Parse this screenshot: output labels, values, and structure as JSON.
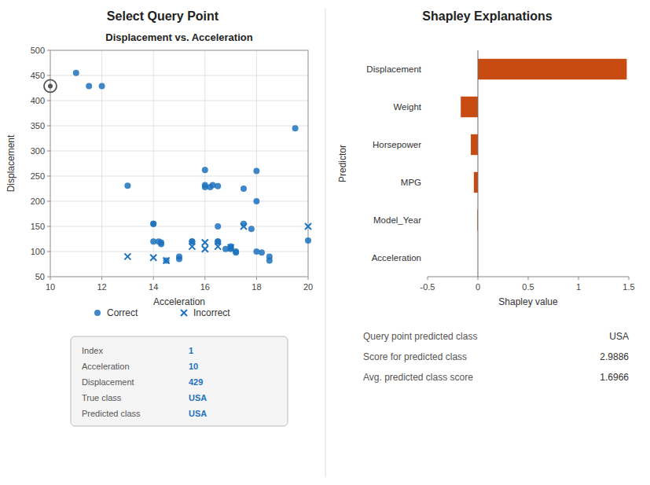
{
  "chart_data": [
    {
      "type": "scatter",
      "subtitle": "Select Query Point",
      "title": "Displacement vs. Acceleration",
      "x_label": "Acceleration",
      "y_label": "Displacement",
      "xlim": [
        10,
        20
      ],
      "xticks": [
        10,
        12,
        14,
        16,
        18,
        20
      ],
      "ylim": [
        50,
        500
      ],
      "yticks": [
        50,
        100,
        150,
        200,
        250,
        300,
        350,
        400,
        450,
        500
      ],
      "grid": true,
      "legend": "bottom",
      "series": [
        {
          "name": "Correct",
          "color": "#1e72be",
          "marker": "circle",
          "x": [
            11.0,
            11.5,
            12.0,
            13.0,
            14.0,
            14.0,
            14.0,
            14.2,
            14.3,
            14.3,
            14.5,
            15.0,
            15.0,
            15.5,
            15.5,
            16.0,
            16.0,
            16.2,
            16.3,
            16.5,
            16.0,
            16.5,
            16.5,
            16.5,
            16.8,
            17.0,
            17.0,
            17.0,
            17.2,
            17.2,
            17.5,
            17.5,
            17.8,
            18.0,
            18.0,
            18.0,
            18.2,
            18.5,
            18.5,
            19.5,
            20.0
          ],
          "values": [
            455,
            429,
            429,
            231,
            155,
            155,
            120,
            120,
            115,
            118,
            82,
            90,
            85,
            120,
            120,
            228,
            232,
            228,
            232,
            230,
            262,
            120,
            120,
            150,
            105,
            110,
            105,
            108,
            100,
            98,
            225,
            155,
            145,
            260,
            200,
            100,
            98,
            90,
            82,
            345,
            122
          ]
        },
        {
          "name": "Incorrect",
          "color": "#1e72be",
          "marker": "x",
          "x": [
            13.0,
            14.0,
            14.5,
            15.5,
            16.0,
            16.0,
            16.5,
            17.0,
            17.5,
            20.0
          ],
          "values": [
            90,
            88,
            82,
            110,
            118,
            105,
            110,
            108,
            150,
            150
          ]
        }
      ],
      "query_point": {
        "x": 10.0,
        "y": 429,
        "tooltip": [
          {
            "label": "Index",
            "value": "1"
          },
          {
            "label": "Acceleration",
            "value": "10"
          },
          {
            "label": "Displacement",
            "value": "429"
          },
          {
            "label": "True class",
            "value": "USA"
          },
          {
            "label": "Predicted class",
            "value": "USA"
          }
        ]
      }
    },
    {
      "type": "bar",
      "orientation": "horizontal",
      "title": "Shapley Explanations",
      "x_label": "Shapley value",
      "y_label": "Predictor",
      "categories": [
        "Displacement",
        "Weight",
        "Horsepower",
        "MPG",
        "Model_Year",
        "Acceleration"
      ],
      "values": [
        1.48,
        -0.17,
        -0.07,
        -0.04,
        -0.005,
        0.0
      ],
      "color": "#c84b11",
      "xlim": [
        -0.5,
        1.5
      ],
      "xticks": [
        -0.5,
        0,
        0.5,
        1,
        1.5
      ],
      "grid": false,
      "annotations": [
        {
          "text": "Query point predicted class",
          "value": "USA"
        },
        {
          "text": "Score for predicted class",
          "value": "2.9886"
        },
        {
          "text": "Avg. predicted class score",
          "value": "1.6966"
        }
      ]
    }
  ]
}
